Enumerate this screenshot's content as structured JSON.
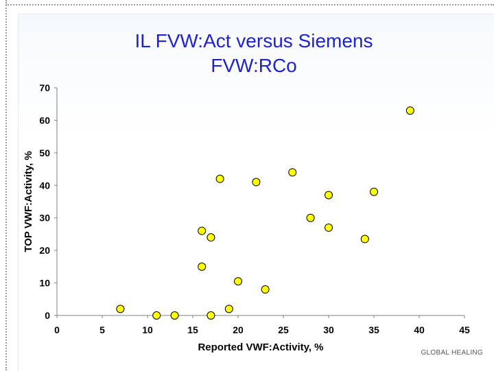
{
  "slide": {
    "title_line1": "IL FVW:Act versus Siemens",
    "title_line2": "FVW:RCo",
    "brand_text": "GLOBAL HEALING"
  },
  "colors": {
    "title": "#1e22d0",
    "marker_fill": "#ffff00",
    "marker_stroke": "#000000"
  },
  "chart_data": {
    "type": "scatter",
    "xlabel": "Reported VWF:Activity, %",
    "ylabel": "TOP VWF:Activity, %",
    "xlim": [
      0,
      45
    ],
    "ylim": [
      0,
      70
    ],
    "x_ticks": [
      "0",
      "5",
      "10",
      "15",
      "20",
      "25",
      "30",
      "35",
      "40",
      "45"
    ],
    "y_ticks": [
      "0",
      "10",
      "20",
      "30",
      "40",
      "50",
      "60",
      "70"
    ],
    "grid": false,
    "points": [
      {
        "x": 7,
        "y": 2
      },
      {
        "x": 11,
        "y": 0
      },
      {
        "x": 13,
        "y": 0
      },
      {
        "x": 16,
        "y": 26
      },
      {
        "x": 16,
        "y": 15
      },
      {
        "x": 17,
        "y": 24
      },
      {
        "x": 17,
        "y": 0
      },
      {
        "x": 18,
        "y": 42
      },
      {
        "x": 19,
        "y": 2
      },
      {
        "x": 20,
        "y": 10.5
      },
      {
        "x": 22,
        "y": 41
      },
      {
        "x": 23,
        "y": 8
      },
      {
        "x": 26,
        "y": 44
      },
      {
        "x": 28,
        "y": 30
      },
      {
        "x": 30,
        "y": 37
      },
      {
        "x": 30,
        "y": 27
      },
      {
        "x": 34,
        "y": 23.5
      },
      {
        "x": 35,
        "y": 38
      },
      {
        "x": 39,
        "y": 63
      }
    ]
  }
}
